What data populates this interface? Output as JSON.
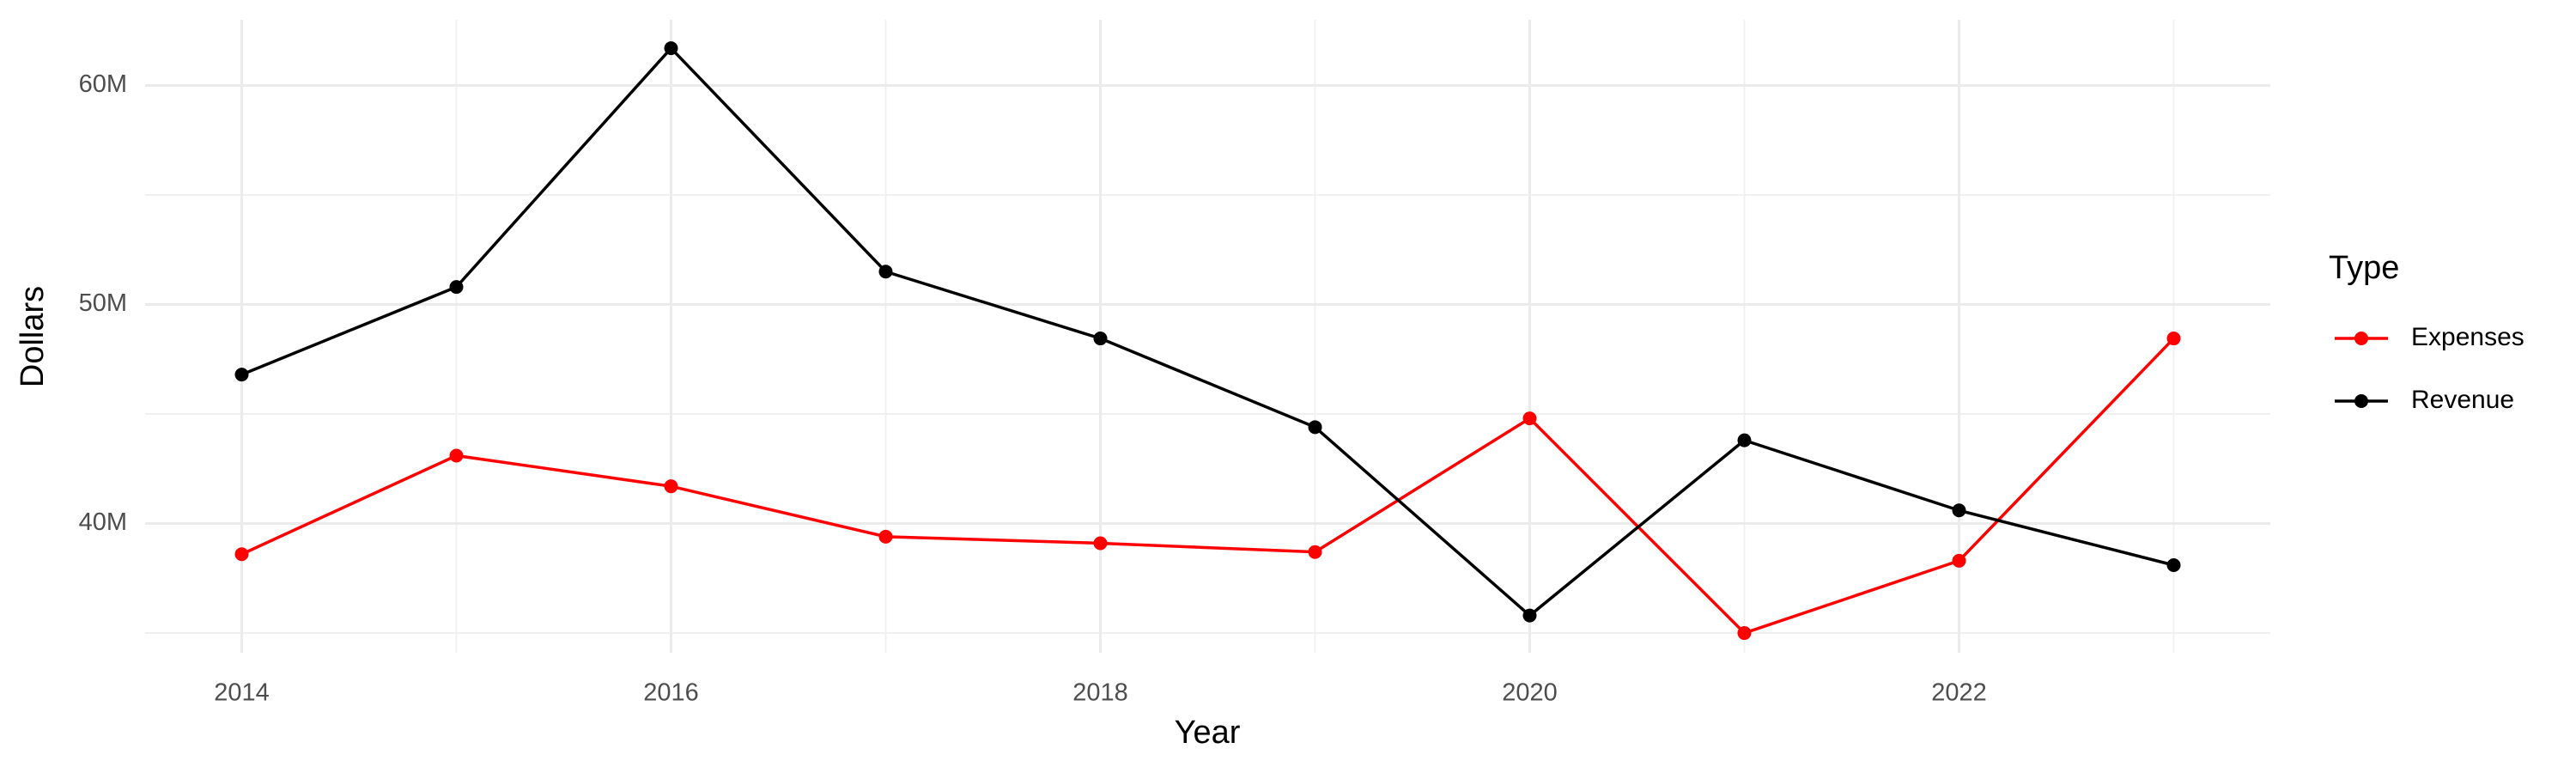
{
  "chart_data": {
    "type": "line",
    "x_label": "Year",
    "y_label": "Dollars",
    "legend_title": "Type",
    "legend": "right",
    "grid": true,
    "x": [
      2014,
      2015,
      2016,
      2017,
      2018,
      2019,
      2020,
      2021,
      2022,
      2023
    ],
    "series": [
      {
        "name": "Expenses",
        "color": "#ff0000",
        "values": [
          38600000,
          43100000,
          41700000,
          39400000,
          39100000,
          38700000,
          44800000,
          35000000,
          38300000,
          48450000
        ]
      },
      {
        "name": "Revenue",
        "color": "#000000",
        "values": [
          46800000,
          50800000,
          61700000,
          51500000,
          48450000,
          44400000,
          35800000,
          43800000,
          40600000,
          38100000
        ]
      }
    ],
    "xlim": [
      2013.55,
      2023.45
    ],
    "xticks": [
      2014,
      2016,
      2018,
      2020,
      2022
    ],
    "ylim": [
      34100000,
      63000000
    ],
    "yticks": [
      {
        "value": 40000000,
        "label": "40M"
      },
      {
        "value": 50000000,
        "label": "50M"
      },
      {
        "value": 60000000,
        "label": "60M"
      }
    ]
  }
}
